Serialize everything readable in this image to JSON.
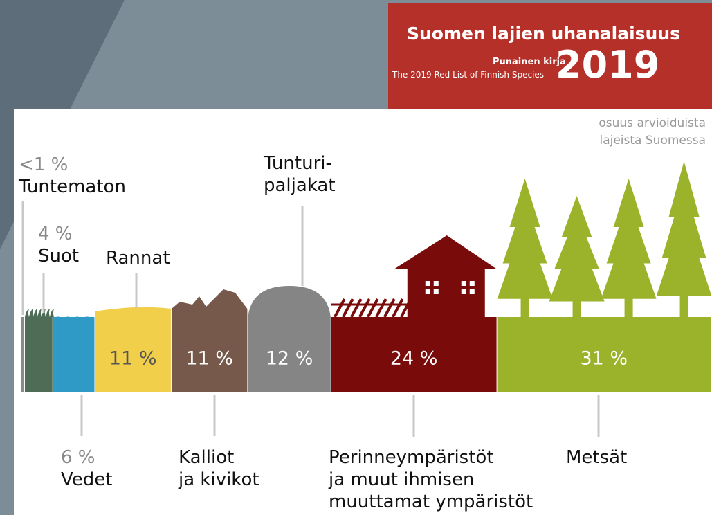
{
  "header": {
    "title": "Suomen lajien uhanalaisuus",
    "subtitle": "Punainen kirja",
    "english_title": "The 2019 Red List of Finnish Species",
    "year": "2019"
  },
  "chart_data": {
    "type": "strip",
    "note": "osuus arvioiduista\nlajeista Suomessa",
    "categories": [
      "Tuntematon",
      "Suot",
      "Vedet",
      "Rannat",
      "Kalliot\nja kivikot",
      "Tunturi-\npaljakat",
      "Perinneympäristöt\nja muut ihmisen\nmuuttamat ympäristöt",
      "Metsät"
    ],
    "values": [
      0.5,
      4,
      6,
      11,
      11,
      12,
      24,
      31
    ],
    "value_labels": [
      "<1 %",
      "4 %",
      "6 %",
      "11 %",
      "11 %",
      "12 %",
      "24 %",
      "31 %"
    ],
    "colors": [
      "#8a8a8a",
      "#4f6d56",
      "#2f9ac6",
      "#f2cf4a",
      "#76594b",
      "#858585",
      "#7a0b0b",
      "#9bb22b"
    ]
  }
}
